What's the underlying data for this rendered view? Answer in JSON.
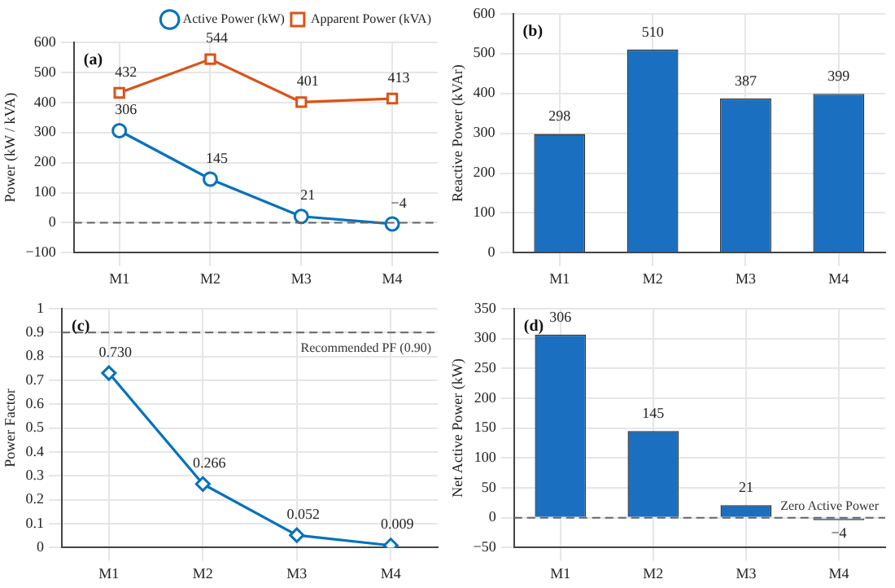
{
  "chart_data": [
    {
      "type": "line",
      "ylabel": "Power (kW / kVA)",
      "annotations": [
        "(a)"
      ],
      "categories": [
        "M1",
        "M2",
        "M3",
        "M4"
      ],
      "series": [
        {
          "name": "Active Power (kW)",
          "color": "#0072bd",
          "marker": "circle",
          "values": [
            306,
            145,
            21,
            -4
          ]
        },
        {
          "name": "Apparent Power (kVA)",
          "color": "#d95319",
          "marker": "square",
          "values": [
            432,
            544,
            401,
            413
          ]
        }
      ],
      "ylim": [
        -100,
        600
      ],
      "yticks": [
        -100,
        0,
        100,
        200,
        300,
        400,
        500,
        600
      ],
      "grid": true,
      "legend": "top right",
      "data_labels": true,
      "ref_lines": [
        {
          "axis": "y",
          "value": 0,
          "color": "#666666",
          "line_style": "dashed"
        }
      ]
    },
    {
      "type": "bar",
      "ylabel": "Reactive Power (kVAr)",
      "annotations": [
        "(b)"
      ],
      "categories": [
        "M1",
        "M2",
        "M3",
        "M4"
      ],
      "values": [
        298,
        510,
        387,
        399
      ],
      "color": "#1a6fc0",
      "ylim": [
        0,
        600
      ],
      "yticks": [
        0,
        100,
        200,
        300,
        400,
        500,
        600
      ],
      "grid": true,
      "data_labels": true
    },
    {
      "type": "line",
      "ylabel": "Power Factor",
      "annotations": [
        "(c)"
      ],
      "categories": [
        "M1",
        "M2",
        "M3",
        "M4"
      ],
      "values": [
        0.73,
        0.266,
        0.052,
        0.009
      ],
      "value_labels": [
        "0.730",
        "0.266",
        "0.052",
        "0.009"
      ],
      "color": "#0072bd",
      "marker": "diamond",
      "ylim": [
        0,
        1
      ],
      "yticks": [
        0,
        0.1,
        0.2,
        0.3,
        0.4,
        0.5,
        0.6,
        0.7,
        0.8,
        0.9,
        1
      ],
      "grid": true,
      "ref_lines": [
        {
          "axis": "y",
          "value": 0.9,
          "label": "Recommended PF (0.90)",
          "color": "#666666",
          "line_style": "dashed"
        }
      ]
    },
    {
      "type": "bar",
      "ylabel": "Net Active Power (kW)",
      "annotations": [
        "(d)"
      ],
      "categories": [
        "M1",
        "M2",
        "M3",
        "M4"
      ],
      "values": [
        306,
        145,
        21,
        -4
      ],
      "color": "#1a6fc0",
      "ylim": [
        -50,
        350
      ],
      "yticks": [
        -50,
        0,
        50,
        100,
        150,
        200,
        250,
        300,
        350
      ],
      "grid": true,
      "data_labels": true,
      "ref_lines": [
        {
          "axis": "y",
          "value": 0,
          "label": "Zero Active Power",
          "color": "#666666",
          "line_style": "dashed"
        }
      ]
    }
  ]
}
